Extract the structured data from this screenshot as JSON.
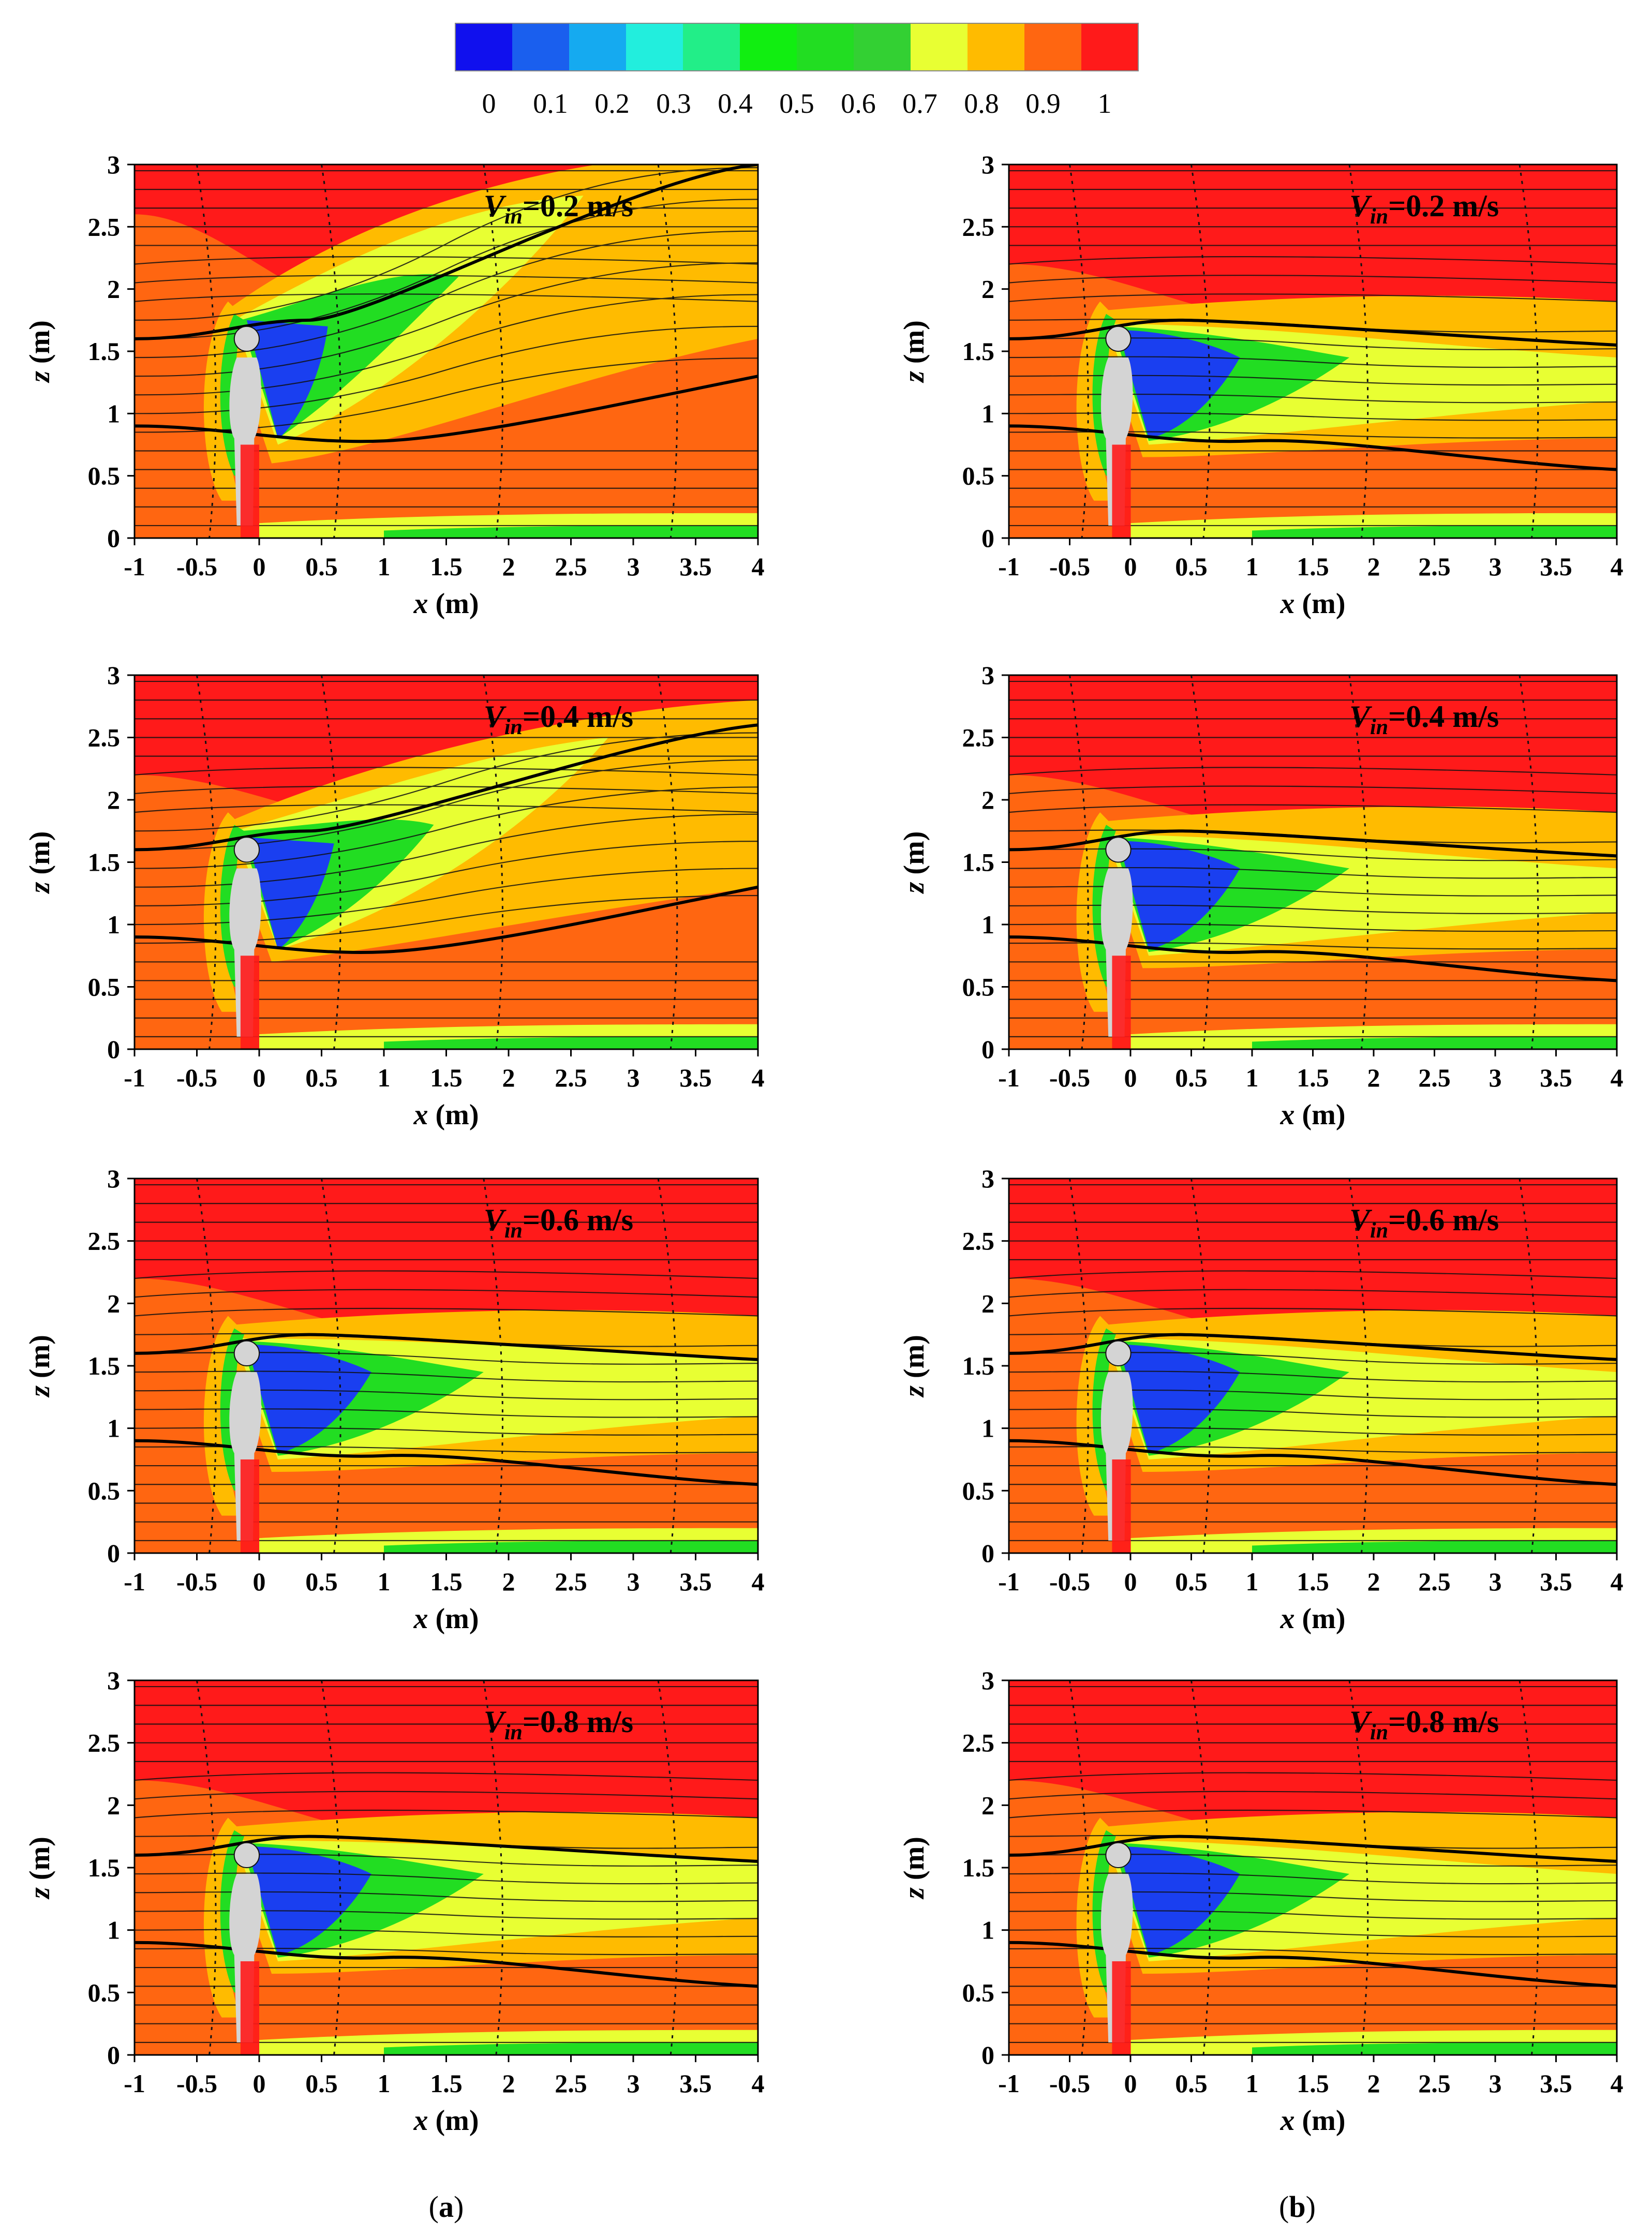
{
  "colorbar": {
    "tick_labels": [
      "0",
      "0.1",
      "0.2",
      "0.3",
      "0.4",
      "0.5",
      "0.6",
      "0.7",
      "0.8",
      "0.9",
      "1"
    ],
    "colors": [
      "#1010ee",
      "#1a5fee",
      "#15aaf0",
      "#22eedd",
      "#22ee88",
      "#11ee11",
      "#22dd22",
      "#33d033",
      "#e8ff33",
      "#ffbb00",
      "#ff6611",
      "#ff1a1a"
    ]
  },
  "panel_labels": [
    "a",
    "b"
  ],
  "axis_text": {
    "x_var": "x",
    "x_unit": " (m)",
    "y_var": "z",
    "y_unit": " (m)"
  },
  "chart_data": [
    {
      "type": "heatmap",
      "column": "a",
      "velocity_prefix": "V",
      "velocity_sub": "in",
      "velocity_value": "=0.2 m/s",
      "xlim": [
        -1,
        4
      ],
      "ylim": [
        0,
        3
      ],
      "xticks": [
        "-1",
        "-0.5",
        "0",
        "0.5",
        "1",
        "1.5",
        "2",
        "2.5",
        "3",
        "3.5",
        "4"
      ],
      "yticks": [
        "0",
        "0.5",
        "1",
        "1.5",
        "2",
        "2.5",
        "3"
      ]
    },
    {
      "type": "heatmap",
      "column": "b",
      "velocity_prefix": "V",
      "velocity_sub": "in",
      "velocity_value": "=0.2 m/s",
      "xlim": [
        -1,
        4
      ],
      "ylim": [
        0,
        3
      ],
      "xticks": [
        "-1",
        "-0.5",
        "0",
        "0.5",
        "1",
        "1.5",
        "2",
        "2.5",
        "3",
        "3.5",
        "4"
      ],
      "yticks": [
        "0",
        "0.5",
        "1",
        "1.5",
        "2",
        "2.5",
        "3"
      ]
    },
    {
      "type": "heatmap",
      "column": "a",
      "velocity_prefix": "V",
      "velocity_sub": "in",
      "velocity_value": "=0.4 m/s",
      "xlim": [
        -1,
        4
      ],
      "ylim": [
        0,
        3
      ],
      "xticks": [
        "-1",
        "-0.5",
        "0",
        "0.5",
        "1",
        "1.5",
        "2",
        "2.5",
        "3",
        "3.5",
        "4"
      ],
      "yticks": [
        "0",
        "0.5",
        "1",
        "1.5",
        "2",
        "2.5",
        "3"
      ]
    },
    {
      "type": "heatmap",
      "column": "b",
      "velocity_prefix": "V",
      "velocity_sub": "in",
      "velocity_value": "=0.4 m/s",
      "xlim": [
        -1,
        4
      ],
      "ylim": [
        0,
        3
      ],
      "xticks": [
        "-1",
        "-0.5",
        "0",
        "0.5",
        "1",
        "1.5",
        "2",
        "2.5",
        "3",
        "3.5",
        "4"
      ],
      "yticks": [
        "0",
        "0.5",
        "1",
        "1.5",
        "2",
        "2.5",
        "3"
      ]
    },
    {
      "type": "heatmap",
      "column": "a",
      "velocity_prefix": "V",
      "velocity_sub": "in",
      "velocity_value": "=0.6 m/s",
      "xlim": [
        -1,
        4
      ],
      "ylim": [
        0,
        3
      ],
      "xticks": [
        "-1",
        "-0.5",
        "0",
        "0.5",
        "1",
        "1.5",
        "2",
        "2.5",
        "3",
        "3.5",
        "4"
      ],
      "yticks": [
        "0",
        "0.5",
        "1",
        "1.5",
        "2",
        "2.5",
        "3"
      ]
    },
    {
      "type": "heatmap",
      "column": "b",
      "velocity_prefix": "V",
      "velocity_sub": "in",
      "velocity_value": "=0.6 m/s",
      "xlim": [
        -1,
        4
      ],
      "ylim": [
        0,
        3
      ],
      "xticks": [
        "-1",
        "-0.5",
        "0",
        "0.5",
        "1",
        "1.5",
        "2",
        "2.5",
        "3",
        "3.5",
        "4"
      ],
      "yticks": [
        "0",
        "0.5",
        "1",
        "1.5",
        "2",
        "2.5",
        "3"
      ]
    },
    {
      "type": "heatmap",
      "column": "a",
      "velocity_prefix": "V",
      "velocity_sub": "in",
      "velocity_value": "=0.8 m/s",
      "xlim": [
        -1,
        4
      ],
      "ylim": [
        0,
        3
      ],
      "xticks": [
        "-1",
        "-0.5",
        "0",
        "0.5",
        "1",
        "1.5",
        "2",
        "2.5",
        "3",
        "3.5",
        "4"
      ],
      "yticks": [
        "0",
        "0.5",
        "1",
        "1.5",
        "2",
        "2.5",
        "3"
      ]
    },
    {
      "type": "heatmap",
      "column": "b",
      "velocity_prefix": "V",
      "velocity_sub": "in",
      "velocity_value": "=0.8 m/s",
      "xlim": [
        -1,
        4
      ],
      "ylim": [
        0,
        3
      ],
      "xticks": [
        "-1",
        "-0.5",
        "0",
        "0.5",
        "1",
        "1.5",
        "2",
        "2.5",
        "3",
        "3.5",
        "4"
      ],
      "yticks": [
        "0",
        "0.5",
        "1",
        "1.5",
        "2",
        "2.5",
        "3"
      ]
    }
  ]
}
